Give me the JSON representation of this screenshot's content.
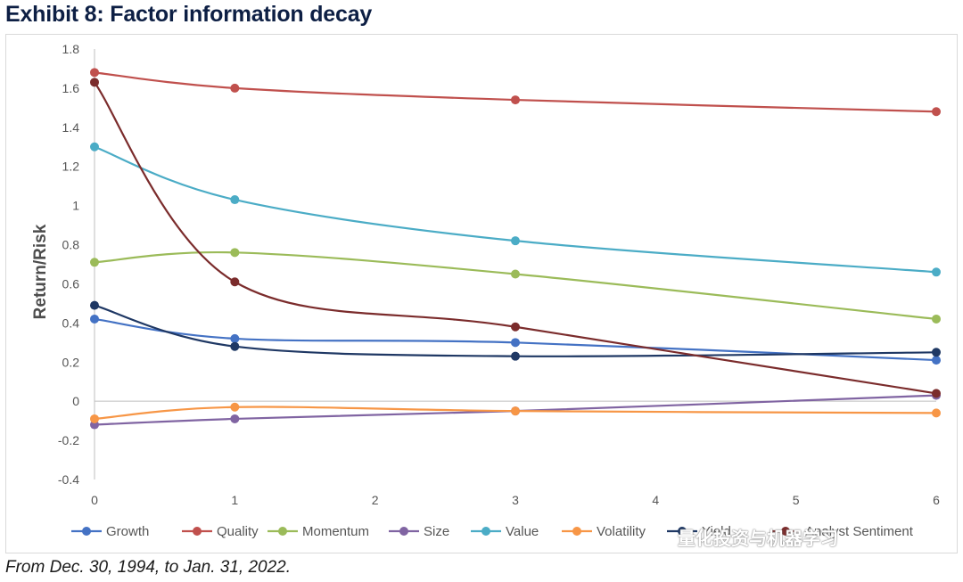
{
  "title": "Exhibit 8: Factor information decay",
  "footnote": "From Dec. 30, 1994, to Jan. 31, 2022.",
  "watermark": "量化投资与机器学习",
  "chart_data": {
    "type": "line",
    "title": "Exhibit 8: Factor information decay",
    "xlabel": "",
    "ylabel": "Return/Risk",
    "xlim": [
      0,
      6
    ],
    "ylim": [
      -0.4,
      1.8
    ],
    "x_ticks": [
      "0",
      "1",
      "2",
      "3",
      "4",
      "5",
      "6"
    ],
    "y_ticks": [
      "1.8",
      "1.6",
      "1.4",
      "1.2",
      "1",
      "0.8",
      "0.6",
      "0.4",
      "0.2",
      "0",
      "-0.2",
      "-0.4"
    ],
    "grid": false,
    "legend_position": "bottom",
    "x": [
      0,
      1,
      3,
      6
    ],
    "series": [
      {
        "name": "Growth",
        "color": "#4472c4",
        "values": [
          0.42,
          0.32,
          0.3,
          0.21
        ]
      },
      {
        "name": "Quality",
        "color": "#c0504d",
        "values": [
          1.68,
          1.6,
          1.54,
          1.48
        ]
      },
      {
        "name": "Momentum",
        "color": "#9bbb59",
        "values": [
          0.71,
          0.76,
          0.65,
          0.42
        ]
      },
      {
        "name": "Size",
        "color": "#8064a2",
        "values": [
          -0.12,
          -0.09,
          -0.05,
          0.03
        ]
      },
      {
        "name": "Value",
        "color": "#4bacc6",
        "values": [
          1.3,
          1.03,
          0.82,
          0.66
        ]
      },
      {
        "name": "Volatility",
        "color": "#f79646",
        "values": [
          -0.09,
          -0.03,
          -0.05,
          -0.06
        ]
      },
      {
        "name": "Yield",
        "color": "#1f3864",
        "values": [
          0.49,
          0.28,
          0.23,
          0.25
        ]
      },
      {
        "name": "Analyst Sentiment",
        "color": "#7b2c2c",
        "values": [
          1.63,
          0.61,
          0.38,
          0.04
        ]
      }
    ]
  }
}
